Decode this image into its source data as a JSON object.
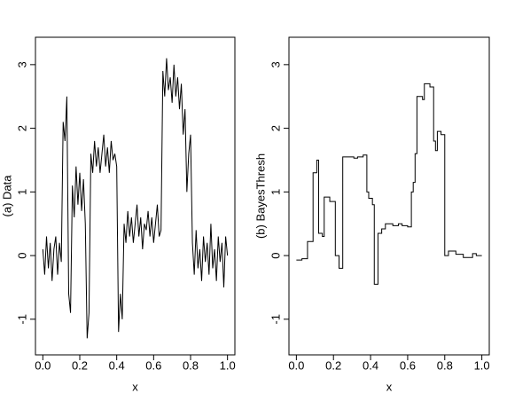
{
  "chart_data": [
    {
      "type": "line",
      "xlabel": "x",
      "ylabel": "(a) Data",
      "xlim": [
        -0.04,
        1.04
      ],
      "ylim": [
        -1.56,
        3.43
      ],
      "xticks": [
        {
          "value": 0,
          "label": "0.0"
        },
        {
          "value": 0.2,
          "label": "0.2"
        },
        {
          "value": 0.4,
          "label": "0.4"
        },
        {
          "value": 0.6,
          "label": "0.6"
        },
        {
          "value": 0.8,
          "label": "0.8"
        },
        {
          "value": 1,
          "label": "1.0"
        }
      ],
      "yticks": [
        -1,
        0,
        1,
        2,
        3
      ],
      "x": [
        0,
        0.01,
        0.02,
        0.03,
        0.04,
        0.05,
        0.06,
        0.07,
        0.08,
        0.09,
        0.1,
        0.11,
        0.12,
        0.13,
        0.14,
        0.15,
        0.16,
        0.17,
        0.18,
        0.19,
        0.2,
        0.21,
        0.22,
        0.23,
        0.24,
        0.25,
        0.26,
        0.27,
        0.28,
        0.29,
        0.3,
        0.31,
        0.32,
        0.33,
        0.34,
        0.35,
        0.36,
        0.37,
        0.38,
        0.39,
        0.4,
        0.41,
        0.42,
        0.43,
        0.44,
        0.45,
        0.46,
        0.47,
        0.48,
        0.49,
        0.5,
        0.51,
        0.52,
        0.53,
        0.54,
        0.55,
        0.56,
        0.57,
        0.58,
        0.59,
        0.6,
        0.61,
        0.62,
        0.63,
        0.64,
        0.65,
        0.66,
        0.67,
        0.68,
        0.69,
        0.7,
        0.71,
        0.72,
        0.73,
        0.74,
        0.75,
        0.76,
        0.77,
        0.78,
        0.79,
        0.8,
        0.81,
        0.82,
        0.83,
        0.84,
        0.85,
        0.86,
        0.87,
        0.88,
        0.89,
        0.9,
        0.91,
        0.92,
        0.93,
        0.94,
        0.95,
        0.96,
        0.97,
        0.98,
        0.99,
        1
      ],
      "series": [
        {
          "color": "#000000",
          "values": [
            0.1,
            -0.3,
            0.3,
            -0.2,
            0.2,
            -0.4,
            0.1,
            0.3,
            -0.3,
            0.2,
            -0.1,
            2.1,
            1.8,
            2.5,
            -0.6,
            -0.9,
            1.1,
            0.6,
            1.4,
            0.8,
            1.3,
            0.7,
            1.2,
            0.5,
            -1.3,
            -0.9,
            1.6,
            1.3,
            1.8,
            1.4,
            1.7,
            1.3,
            1.6,
            1.9,
            1.4,
            1.7,
            1.3,
            1.8,
            1.5,
            1.6,
            1.4,
            -1.2,
            -0.6,
            -1.0,
            0.5,
            0.2,
            0.7,
            0.3,
            0.6,
            0.2,
            0.5,
            0.8,
            0.3,
            0.6,
            0.1,
            0.5,
            0.4,
            0.7,
            0.3,
            0.6,
            0.2,
            0.5,
            0.8,
            0.3,
            0.4,
            2.9,
            2.5,
            3.1,
            2.6,
            2.8,
            2.4,
            3.0,
            2.5,
            2.8,
            2.3,
            2.7,
            1.9,
            2.3,
            1.0,
            1.6,
            1.9,
            0.2,
            -0.3,
            0.4,
            -0.2,
            0.1,
            -0.4,
            0.3,
            -0.1,
            0.2,
            -0.3,
            0.5,
            -0.2,
            0.1,
            -0.4,
            0.3,
            -0.1,
            0.2,
            -0.5,
            0.3,
            0.0
          ]
        }
      ]
    },
    {
      "type": "line",
      "xlabel": "x",
      "ylabel": "(b) BayesThresh",
      "xlim": [
        -0.04,
        1.04
      ],
      "ylim": [
        -1.56,
        3.43
      ],
      "xticks": [
        {
          "value": 0,
          "label": "0.0"
        },
        {
          "value": 0.2,
          "label": "0.2"
        },
        {
          "value": 0.4,
          "label": "0.4"
        },
        {
          "value": 0.6,
          "label": "0.6"
        },
        {
          "value": 0.8,
          "label": "0.8"
        },
        {
          "value": 1,
          "label": "1.0"
        }
      ],
      "yticks": [
        -1,
        0,
        1,
        2,
        3
      ],
      "x": [
        0,
        0.03,
        0.03,
        0.06,
        0.06,
        0.09,
        0.09,
        0.11,
        0.11,
        0.12,
        0.12,
        0.14,
        0.14,
        0.15,
        0.15,
        0.18,
        0.18,
        0.21,
        0.21,
        0.23,
        0.23,
        0.25,
        0.25,
        0.31,
        0.31,
        0.33,
        0.33,
        0.36,
        0.36,
        0.38,
        0.38,
        0.39,
        0.39,
        0.41,
        0.41,
        0.42,
        0.42,
        0.44,
        0.44,
        0.46,
        0.46,
        0.48,
        0.48,
        0.52,
        0.52,
        0.55,
        0.55,
        0.57,
        0.57,
        0.6,
        0.6,
        0.62,
        0.62,
        0.63,
        0.63,
        0.64,
        0.64,
        0.65,
        0.65,
        0.68,
        0.68,
        0.69,
        0.69,
        0.72,
        0.72,
        0.74,
        0.74,
        0.75,
        0.75,
        0.76,
        0.76,
        0.78,
        0.78,
        0.8,
        0.8,
        0.82,
        0.82,
        0.86,
        0.86,
        0.9,
        0.9,
        0.95,
        0.95,
        0.97,
        0.97,
        1
      ],
      "series": [
        {
          "color": "#000000",
          "values": [
            -0.07,
            -0.07,
            -0.05,
            -0.05,
            0.22,
            0.22,
            1.3,
            1.3,
            1.5,
            1.5,
            0.35,
            0.35,
            0.3,
            0.3,
            0.92,
            0.92,
            0.85,
            0.85,
            0.0,
            0.0,
            -0.2,
            -0.2,
            1.55,
            1.55,
            1.53,
            1.53,
            1.55,
            1.55,
            1.58,
            1.58,
            1.0,
            1.0,
            0.9,
            0.9,
            0.8,
            0.8,
            -0.45,
            -0.45,
            0.35,
            0.35,
            0.42,
            0.42,
            0.5,
            0.5,
            0.47,
            0.47,
            0.5,
            0.5,
            0.47,
            0.47,
            0.45,
            0.45,
            1.0,
            1.0,
            1.15,
            1.15,
            1.6,
            1.6,
            2.5,
            2.5,
            2.45,
            2.45,
            2.7,
            2.7,
            2.65,
            2.65,
            1.8,
            1.8,
            1.65,
            1.65,
            1.95,
            1.95,
            1.9,
            1.9,
            0.0,
            0.0,
            0.07,
            0.07,
            0.02,
            0.02,
            -0.03,
            -0.03,
            0.03,
            0.03,
            0.0,
            0.0
          ]
        }
      ]
    }
  ]
}
